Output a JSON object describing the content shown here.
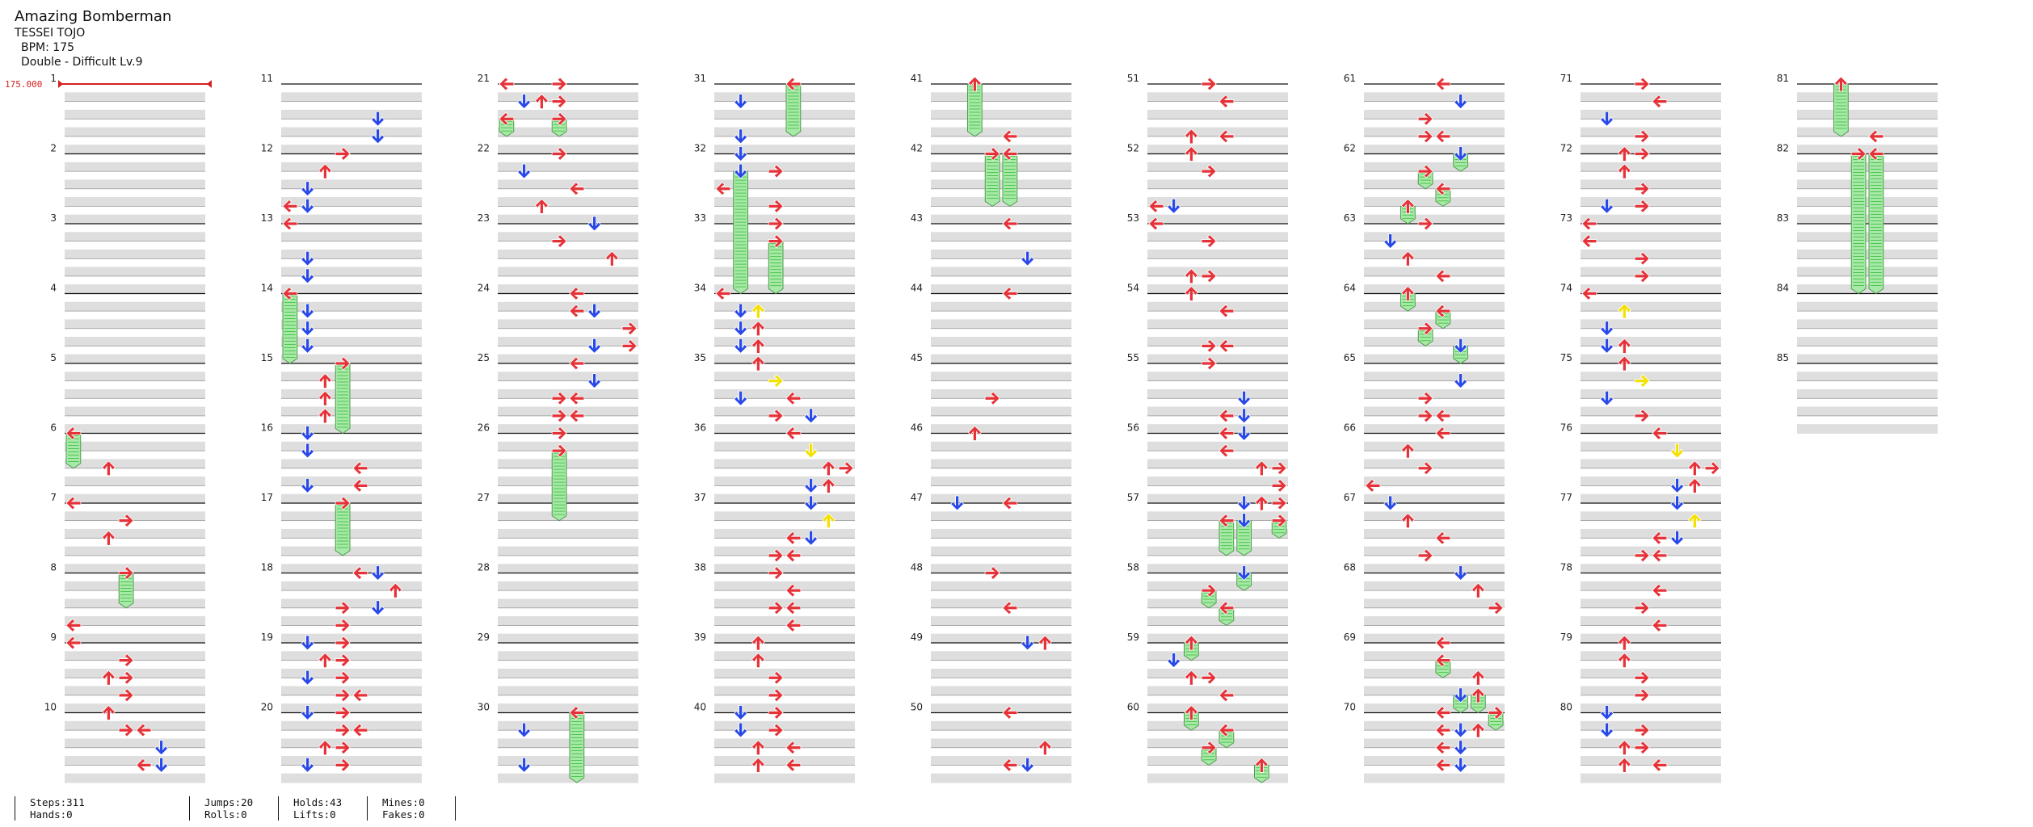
{
  "song": {
    "title": "Amazing Bomberman",
    "artist": "TESSEI TOJO",
    "bpm_label": "BPM: 175",
    "chart_label": "Double - Difficult  Lv.9",
    "bpm_marker": "175.000"
  },
  "colors": {
    "left": "#e53238",
    "down": "#2848e8",
    "up": "#e53238",
    "right": "#e53238",
    "mine": "#f5e000",
    "hold": "#a8e8a8",
    "hold_stripe": "#4cc84c",
    "band": "#dedede",
    "beat_line": "#111111"
  },
  "measures_per_column": 10,
  "total_measures": 85,
  "measure_numbers": [
    "1",
    "2",
    "3",
    "4",
    "5",
    "6",
    "7",
    "8",
    "9",
    "10",
    "11",
    "12",
    "13",
    "14",
    "15",
    "16",
    "17",
    "18",
    "19",
    "20",
    "21",
    "22",
    "23",
    "24",
    "25",
    "26",
    "27",
    "28",
    "29",
    "30",
    "31",
    "32",
    "33",
    "34",
    "35",
    "36",
    "37",
    "38",
    "39",
    "40",
    "41",
    "42",
    "43",
    "44",
    "45",
    "46",
    "47",
    "48",
    "49",
    "50",
    "51",
    "52",
    "53",
    "54",
    "55",
    "56",
    "57",
    "58",
    "59",
    "60",
    "61",
    "62",
    "63",
    "64",
    "65",
    "66",
    "67",
    "68",
    "69",
    "70",
    "71",
    "72",
    "73",
    "74",
    "75",
    "76",
    "77",
    "78",
    "79",
    "80",
    "81",
    "82",
    "83",
    "84",
    "85"
  ],
  "notes": [
    [
      6.0,
      0,
      "hold",
      0.5
    ],
    [
      6.5,
      2,
      "tap"
    ],
    [
      7.0,
      0,
      "tap"
    ],
    [
      7.25,
      3,
      "tap"
    ],
    [
      7.5,
      2,
      "tap"
    ],
    [
      8.0,
      3,
      "hold",
      0.5
    ],
    [
      8.75,
      0,
      "tap"
    ],
    [
      9.0,
      0,
      "tap"
    ],
    [
      9.25,
      3,
      "tap"
    ],
    [
      9.5,
      2,
      "tap"
    ],
    [
      9.5,
      3,
      "tap"
    ],
    [
      9.75,
      3,
      "tap"
    ],
    [
      10.0,
      2,
      "tap"
    ],
    [
      10.25,
      3,
      "tap"
    ],
    [
      10.25,
      4,
      "tap"
    ],
    [
      10.75,
      4,
      "tap"
    ],
    [
      10.5,
      5,
      "tap"
    ],
    [
      10.75,
      5,
      "tap"
    ],
    [
      11.5,
      5,
      "tap"
    ],
    [
      11.75,
      5,
      "tap"
    ],
    [
      12.0,
      3,
      "tap"
    ],
    [
      12.25,
      2,
      "tap"
    ],
    [
      12.5,
      1,
      "tap"
    ],
    [
      12.75,
      0,
      "tap"
    ],
    [
      12.75,
      1,
      "tap"
    ],
    [
      13.0,
      0,
      "tap"
    ],
    [
      13.5,
      1,
      "tap"
    ],
    [
      13.75,
      1,
      "tap"
    ],
    [
      14.0,
      0,
      "hold",
      1.0
    ],
    [
      14.25,
      1,
      "tap"
    ],
    [
      14.5,
      1,
      "tap"
    ],
    [
      14.75,
      1,
      "tap"
    ],
    [
      15.0,
      3,
      "hold",
      1.0
    ],
    [
      15.25,
      2,
      "tap"
    ],
    [
      15.5,
      2,
      "tap"
    ],
    [
      15.75,
      2,
      "tap"
    ],
    [
      16.0,
      1,
      "tap"
    ],
    [
      16.25,
      1,
      "tap"
    ],
    [
      16.5,
      4,
      "tap"
    ],
    [
      16.75,
      4,
      "tap"
    ],
    [
      16.75,
      1,
      "tap"
    ],
    [
      17.0,
      3,
      "hold",
      0.75
    ],
    [
      18.0,
      4,
      "tap"
    ],
    [
      18.0,
      5,
      "tap"
    ],
    [
      18.25,
      6,
      "tap"
    ],
    [
      18.5,
      5,
      "tap"
    ],
    [
      18.5,
      3,
      "tap"
    ],
    [
      18.75,
      3,
      "tap"
    ],
    [
      19.0,
      3,
      "tap"
    ],
    [
      19.0,
      1,
      "tap"
    ],
    [
      19.25,
      2,
      "tap"
    ],
    [
      19.25,
      3,
      "tap"
    ],
    [
      19.5,
      1,
      "tap"
    ],
    [
      19.5,
      3,
      "tap"
    ],
    [
      19.75,
      3,
      "tap"
    ],
    [
      19.75,
      4,
      "tap"
    ],
    [
      20.0,
      1,
      "tap"
    ],
    [
      20.0,
      3,
      "tap"
    ],
    [
      20.25,
      3,
      "tap"
    ],
    [
      20.25,
      4,
      "tap"
    ],
    [
      20.5,
      2,
      "tap"
    ],
    [
      20.5,
      3,
      "tap"
    ],
    [
      20.75,
      1,
      "tap"
    ],
    [
      20.75,
      3,
      "tap"
    ],
    [
      21.0,
      0,
      "tap"
    ],
    [
      21.0,
      3,
      "tap"
    ],
    [
      21.25,
      1,
      "tap"
    ],
    [
      21.25,
      2,
      "tap"
    ],
    [
      21.25,
      3,
      "tap"
    ],
    [
      21.5,
      0,
      "hold",
      0.25
    ],
    [
      21.5,
      3,
      "hold",
      0.25
    ],
    [
      22.0,
      3,
      "tap"
    ],
    [
      22.25,
      1,
      "tap"
    ],
    [
      22.5,
      4,
      "tap"
    ],
    [
      22.75,
      2,
      "tap"
    ],
    [
      23.0,
      5,
      "tap"
    ],
    [
      23.25,
      3,
      "tap"
    ],
    [
      23.5,
      6,
      "tap"
    ],
    [
      24.0,
      4,
      "tap"
    ],
    [
      24.25,
      4,
      "tap"
    ],
    [
      24.25,
      5,
      "tap"
    ],
    [
      24.5,
      7,
      "tap"
    ],
    [
      24.75,
      5,
      "tap"
    ],
    [
      24.75,
      7,
      "tap"
    ],
    [
      25.0,
      4,
      "tap"
    ],
    [
      25.25,
      5,
      "tap"
    ],
    [
      25.5,
      3,
      "tap"
    ],
    [
      25.5,
      4,
      "tap"
    ],
    [
      25.75,
      3,
      "tap"
    ],
    [
      25.75,
      4,
      "tap"
    ],
    [
      26.0,
      3,
      "tap"
    ],
    [
      26.25,
      3,
      "hold",
      1.0
    ],
    [
      30.0,
      4,
      "hold",
      1.0
    ],
    [
      30.25,
      1,
      "tap"
    ],
    [
      30.75,
      1,
      "tap"
    ],
    [
      31.0,
      4,
      "hold",
      0.75
    ],
    [
      31.25,
      1,
      "tap"
    ],
    [
      31.75,
      1,
      "tap"
    ],
    [
      32.0,
      1,
      "tap"
    ],
    [
      32.25,
      1,
      "hold",
      1.75
    ],
    [
      32.25,
      3,
      "tap"
    ],
    [
      32.5,
      0,
      "tap"
    ],
    [
      32.75,
      3,
      "tap"
    ],
    [
      33.0,
      3,
      "tap"
    ],
    [
      33.25,
      3,
      "hold",
      0.75
    ],
    [
      34.0,
      0,
      "tap"
    ],
    [
      34.25,
      2,
      "mine"
    ],
    [
      34.25,
      1,
      "tap"
    ],
    [
      34.5,
      1,
      "tap"
    ],
    [
      34.5,
      2,
      "tap"
    ],
    [
      34.75,
      1,
      "tap"
    ],
    [
      34.75,
      2,
      "tap"
    ],
    [
      35.0,
      2,
      "tap"
    ],
    [
      35.25,
      3,
      "mine"
    ],
    [
      35.5,
      1,
      "tap"
    ],
    [
      35.5,
      4,
      "tap"
    ],
    [
      35.75,
      3,
      "tap"
    ],
    [
      35.75,
      5,
      "tap"
    ],
    [
      36.0,
      4,
      "tap"
    ],
    [
      36.25,
      5,
      "mine"
    ],
    [
      36.5,
      6,
      "tap"
    ],
    [
      36.5,
      7,
      "tap"
    ],
    [
      36.75,
      5,
      "tap"
    ],
    [
      36.75,
      6,
      "tap"
    ],
    [
      37.0,
      5,
      "tap"
    ],
    [
      37.25,
      6,
      "mine"
    ],
    [
      37.5,
      4,
      "tap"
    ],
    [
      37.5,
      5,
      "tap"
    ],
    [
      37.75,
      3,
      "tap"
    ],
    [
      37.75,
      4,
      "tap"
    ],
    [
      38.0,
      3,
      "tap"
    ],
    [
      38.25,
      4,
      "tap"
    ],
    [
      38.5,
      3,
      "tap"
    ],
    [
      38.5,
      4,
      "tap"
    ],
    [
      38.75,
      4,
      "tap"
    ],
    [
      39.0,
      2,
      "tap"
    ],
    [
      39.25,
      2,
      "tap"
    ],
    [
      39.5,
      3,
      "tap"
    ],
    [
      39.75,
      3,
      "tap"
    ],
    [
      40.0,
      1,
      "tap"
    ],
    [
      40.0,
      3,
      "tap"
    ],
    [
      40.25,
      1,
      "tap"
    ],
    [
      40.25,
      3,
      "tap"
    ],
    [
      40.5,
      2,
      "tap"
    ],
    [
      40.5,
      4,
      "tap"
    ],
    [
      40.75,
      2,
      "tap"
    ],
    [
      40.75,
      4,
      "tap"
    ],
    [
      41.0,
      2,
      "hold",
      0.75
    ],
    [
      41.75,
      4,
      "tap"
    ],
    [
      42.0,
      3,
      "hold",
      0.75
    ],
    [
      42.0,
      4,
      "hold",
      0.75
    ],
    [
      43.0,
      4,
      "tap"
    ],
    [
      43.5,
      5,
      "tap"
    ],
    [
      44.0,
      4,
      "tap"
    ],
    [
      45.5,
      3,
      "tap"
    ],
    [
      46.0,
      2,
      "tap"
    ],
    [
      47.0,
      1,
      "tap"
    ],
    [
      47.0,
      4,
      "tap"
    ],
    [
      48.0,
      3,
      "tap"
    ],
    [
      48.5,
      4,
      "tap"
    ],
    [
      49.0,
      5,
      "tap"
    ],
    [
      49.0,
      6,
      "tap"
    ],
    [
      50.0,
      4,
      "tap"
    ],
    [
      50.5,
      6,
      "tap"
    ],
    [
      50.75,
      5,
      "tap"
    ],
    [
      50.75,
      4,
      "tap"
    ],
    [
      51.0,
      3,
      "tap"
    ],
    [
      51.25,
      4,
      "tap"
    ],
    [
      51.75,
      2,
      "tap"
    ],
    [
      51.75,
      4,
      "tap"
    ],
    [
      52.0,
      2,
      "tap"
    ],
    [
      52.25,
      3,
      "tap"
    ],
    [
      52.75,
      0,
      "tap"
    ],
    [
      52.75,
      1,
      "tap"
    ],
    [
      53.0,
      0,
      "tap"
    ],
    [
      53.25,
      3,
      "tap"
    ],
    [
      53.75,
      2,
      "tap"
    ],
    [
      53.75,
      3,
      "tap"
    ],
    [
      54.0,
      2,
      "tap"
    ],
    [
      54.25,
      4,
      "tap"
    ],
    [
      54.75,
      3,
      "tap"
    ],
    [
      54.75,
      4,
      "tap"
    ],
    [
      55.0,
      3,
      "tap"
    ],
    [
      55.5,
      5,
      "tap"
    ],
    [
      55.75,
      4,
      "tap"
    ],
    [
      55.75,
      5,
      "tap"
    ],
    [
      56.0,
      4,
      "tap"
    ],
    [
      56.0,
      5,
      "tap"
    ],
    [
      56.25,
      4,
      "tap"
    ],
    [
      56.5,
      6,
      "tap"
    ],
    [
      56.5,
      7,
      "tap"
    ],
    [
      56.75,
      7,
      "tap"
    ],
    [
      57.0,
      5,
      "tap"
    ],
    [
      57.0,
      6,
      "tap"
    ],
    [
      57.0,
      7,
      "tap"
    ],
    [
      57.25,
      4,
      "hold",
      0.5
    ],
    [
      57.25,
      5,
      "hold",
      0.5
    ],
    [
      57.25,
      7,
      "hold",
      0.25
    ],
    [
      58.0,
      5,
      "hold",
      0.25
    ],
    [
      58.25,
      3,
      "hold",
      0.25
    ],
    [
      58.5,
      4,
      "hold",
      0.25
    ],
    [
      59.0,
      2,
      "hold",
      0.25
    ],
    [
      59.25,
      1,
      "tap"
    ],
    [
      59.5,
      2,
      "tap"
    ],
    [
      59.5,
      3,
      "tap"
    ],
    [
      59.75,
      4,
      "tap"
    ],
    [
      60.0,
      2,
      "hold",
      0.25
    ],
    [
      60.25,
      4,
      "hold",
      0.25
    ],
    [
      60.5,
      3,
      "hold",
      0.25
    ],
    [
      60.75,
      6,
      "hold",
      0.25
    ],
    [
      61.0,
      4,
      "tap"
    ],
    [
      61.25,
      5,
      "tap"
    ],
    [
      61.5,
      3,
      "tap"
    ],
    [
      61.75,
      3,
      "tap"
    ],
    [
      61.75,
      4,
      "tap"
    ],
    [
      62.0,
      5,
      "hold",
      0.25
    ],
    [
      62.25,
      3,
      "hold",
      0.25
    ],
    [
      62.5,
      4,
      "hold",
      0.25
    ],
    [
      62.75,
      2,
      "hold",
      0.25
    ],
    [
      63.0,
      3,
      "tap"
    ],
    [
      63.25,
      1,
      "tap"
    ],
    [
      63.5,
      2,
      "tap"
    ],
    [
      63.75,
      4,
      "tap"
    ],
    [
      64.0,
      2,
      "hold",
      0.25
    ],
    [
      64.25,
      4,
      "hold",
      0.25
    ],
    [
      64.5,
      3,
      "hold",
      0.25
    ],
    [
      64.75,
      5,
      "hold",
      0.25
    ],
    [
      65.25,
      5,
      "tap"
    ],
    [
      65.5,
      3,
      "tap"
    ],
    [
      65.75,
      3,
      "tap"
    ],
    [
      65.75,
      4,
      "tap"
    ],
    [
      66.0,
      4,
      "tap"
    ],
    [
      66.25,
      2,
      "tap"
    ],
    [
      66.5,
      3,
      "tap"
    ],
    [
      66.75,
      0,
      "tap"
    ],
    [
      67.0,
      1,
      "tap"
    ],
    [
      67.25,
      2,
      "tap"
    ],
    [
      67.5,
      4,
      "tap"
    ],
    [
      67.75,
      3,
      "tap"
    ],
    [
      68.0,
      5,
      "tap"
    ],
    [
      68.25,
      6,
      "tap"
    ],
    [
      68.5,
      7,
      "tap"
    ],
    [
      69.0,
      4,
      "tap"
    ],
    [
      69.25,
      4,
      "hold",
      0.25
    ],
    [
      69.5,
      6,
      "tap"
    ],
    [
      69.75,
      5,
      "hold",
      0.25
    ],
    [
      69.75,
      6,
      "hold",
      0.25
    ],
    [
      70.0,
      7,
      "hold",
      0.25
    ],
    [
      70.0,
      4,
      "tap"
    ],
    [
      70.25,
      4,
      "tap"
    ],
    [
      70.25,
      5,
      "tap"
    ],
    [
      70.25,
      6,
      "tap"
    ],
    [
      70.5,
      4,
      "tap"
    ],
    [
      70.5,
      5,
      "tap"
    ],
    [
      70.75,
      4,
      "tap"
    ],
    [
      70.75,
      5,
      "tap"
    ],
    [
      71.0,
      3,
      "tap"
    ],
    [
      71.25,
      4,
      "tap"
    ],
    [
      71.5,
      1,
      "tap"
    ],
    [
      71.75,
      3,
      "tap"
    ],
    [
      72.0,
      2,
      "tap"
    ],
    [
      72.0,
      3,
      "tap"
    ],
    [
      72.25,
      2,
      "tap"
    ],
    [
      72.5,
      3,
      "tap"
    ],
    [
      72.75,
      1,
      "tap"
    ],
    [
      72.75,
      3,
      "tap"
    ],
    [
      73.0,
      0,
      "tap"
    ],
    [
      73.25,
      0,
      "tap"
    ],
    [
      73.5,
      3,
      "tap"
    ],
    [
      73.75,
      3,
      "tap"
    ],
    [
      74.0,
      0,
      "tap"
    ],
    [
      74.25,
      2,
      "mine"
    ],
    [
      74.5,
      1,
      "tap"
    ],
    [
      74.75,
      1,
      "tap"
    ],
    [
      74.75,
      2,
      "tap"
    ],
    [
      75.0,
      2,
      "tap"
    ],
    [
      75.25,
      3,
      "mine"
    ],
    [
      75.5,
      1,
      "tap"
    ],
    [
      75.75,
      3,
      "tap"
    ],
    [
      76.0,
      4,
      "tap"
    ],
    [
      76.25,
      5,
      "mine"
    ],
    [
      76.5,
      6,
      "tap"
    ],
    [
      76.5,
      7,
      "tap"
    ],
    [
      76.75,
      5,
      "tap"
    ],
    [
      76.75,
      6,
      "tap"
    ],
    [
      77.0,
      5,
      "tap"
    ],
    [
      77.25,
      6,
      "mine"
    ],
    [
      77.5,
      4,
      "tap"
    ],
    [
      77.5,
      5,
      "tap"
    ],
    [
      77.75,
      3,
      "tap"
    ],
    [
      77.75,
      4,
      "tap"
    ],
    [
      78.25,
      4,
      "tap"
    ],
    [
      78.5,
      3,
      "tap"
    ],
    [
      78.75,
      4,
      "tap"
    ],
    [
      78.75,
      4,
      "tap"
    ],
    [
      79.0,
      2,
      "tap"
    ],
    [
      79.25,
      2,
      "tap"
    ],
    [
      79.5,
      3,
      "tap"
    ],
    [
      79.75,
      3,
      "tap"
    ],
    [
      80.0,
      1,
      "tap"
    ],
    [
      80.25,
      1,
      "tap"
    ],
    [
      80.25,
      3,
      "tap"
    ],
    [
      80.5,
      2,
      "tap"
    ],
    [
      80.5,
      3,
      "tap"
    ],
    [
      80.75,
      2,
      "tap"
    ],
    [
      80.75,
      4,
      "tap"
    ],
    [
      81.0,
      2,
      "hold",
      0.75
    ],
    [
      81.75,
      4,
      "tap"
    ],
    [
      82.0,
      3,
      "hold",
      2.0
    ],
    [
      82.0,
      4,
      "hold",
      2.0
    ]
  ],
  "stats": [
    {
      "line1": "Steps:311",
      "line2": "Hands:0"
    },
    {
      "line1": "Jumps:20",
      "line2": "Rolls:0"
    },
    {
      "line1": "Holds:43",
      "line2": "Lifts:0"
    },
    {
      "line1": "Mines:0",
      "line2": "Fakes:0"
    }
  ]
}
